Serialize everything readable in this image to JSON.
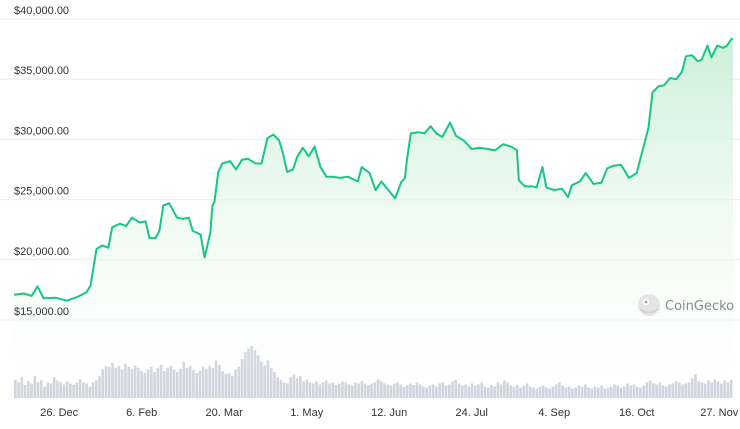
{
  "watermark": {
    "text": "CoinGecko",
    "icon": "coingecko-logo-icon"
  },
  "colors": {
    "line": "#16c784",
    "area_top": "#c9efd5",
    "area_bottom": "#ffffff",
    "grid": "#eeeeee",
    "volume": "#c5c9d6",
    "text": "#333333"
  },
  "chart_data": {
    "type": "area",
    "title": "",
    "xlabel": "",
    "ylabel": "",
    "ylim": [
      15000,
      40000
    ],
    "y_ticks": [
      {
        "value": 40000,
        "label": "$40,000.00"
      },
      {
        "value": 35000,
        "label": "$35,000.00"
      },
      {
        "value": 30000,
        "label": "$30,000.00"
      },
      {
        "value": 25000,
        "label": "$25,000.00"
      },
      {
        "value": 20000,
        "label": "$20,000.00"
      },
      {
        "value": 15000,
        "label": "$15,000.00"
      }
    ],
    "x_range": [
      "2022-12-03",
      "2023-12-04"
    ],
    "x_ticks": [
      {
        "date": "2022-12-26",
        "label": "26. Dec"
      },
      {
        "date": "2023-02-06",
        "label": "6. Feb"
      },
      {
        "date": "2023-03-20",
        "label": "20. Mar"
      },
      {
        "date": "2023-05-01",
        "label": "1. May"
      },
      {
        "date": "2023-06-12",
        "label": "12. Jun"
      },
      {
        "date": "2023-07-24",
        "label": "24. Jul"
      },
      {
        "date": "2023-09-04",
        "label": "4. Sep"
      },
      {
        "date": "2023-10-16",
        "label": "16. Oct"
      },
      {
        "date": "2023-11-27",
        "label": "27. Nov"
      }
    ],
    "grid": true,
    "legend": "none",
    "series": [
      {
        "points": [
          [
            "2022-12-03",
            17100
          ],
          [
            "2022-12-08",
            17200
          ],
          [
            "2022-12-12",
            17000
          ],
          [
            "2022-12-15",
            17800
          ],
          [
            "2022-12-18",
            16800
          ],
          [
            "2022-12-24",
            16850
          ],
          [
            "2022-12-30",
            16600
          ],
          [
            "2023-01-04",
            16900
          ],
          [
            "2023-01-09",
            17300
          ],
          [
            "2023-01-11",
            17900
          ],
          [
            "2023-01-14",
            20900
          ],
          [
            "2023-01-17",
            21200
          ],
          [
            "2023-01-20",
            21000
          ],
          [
            "2023-01-22",
            22700
          ],
          [
            "2023-01-26",
            23000
          ],
          [
            "2023-01-29",
            22800
          ],
          [
            "2023-02-01",
            23500
          ],
          [
            "2023-02-05",
            23100
          ],
          [
            "2023-02-08",
            23200
          ],
          [
            "2023-02-10",
            21800
          ],
          [
            "2023-02-13",
            21800
          ],
          [
            "2023-02-15",
            22400
          ],
          [
            "2023-02-17",
            24500
          ],
          [
            "2023-02-20",
            24700
          ],
          [
            "2023-02-24",
            23500
          ],
          [
            "2023-02-27",
            23400
          ],
          [
            "2023-03-02",
            23500
          ],
          [
            "2023-03-04",
            22400
          ],
          [
            "2023-03-08",
            22100
          ],
          [
            "2023-03-10",
            20200
          ],
          [
            "2023-03-13",
            22300
          ],
          [
            "2023-03-14",
            24500
          ],
          [
            "2023-03-15",
            24800
          ],
          [
            "2023-03-17",
            27300
          ],
          [
            "2023-03-19",
            28000
          ],
          [
            "2023-03-23",
            28200
          ],
          [
            "2023-03-26",
            27500
          ],
          [
            "2023-03-29",
            28300
          ],
          [
            "2023-04-01",
            28400
          ],
          [
            "2023-04-05",
            28000
          ],
          [
            "2023-04-08",
            28000
          ],
          [
            "2023-04-11",
            30100
          ],
          [
            "2023-04-14",
            30400
          ],
          [
            "2023-04-17",
            29900
          ],
          [
            "2023-04-19",
            28800
          ],
          [
            "2023-04-21",
            27300
          ],
          [
            "2023-04-24",
            27500
          ],
          [
            "2023-04-26",
            28500
          ],
          [
            "2023-04-29",
            29300
          ],
          [
            "2023-05-02",
            28600
          ],
          [
            "2023-05-05",
            29400
          ],
          [
            "2023-05-08",
            27700
          ],
          [
            "2023-05-11",
            26900
          ],
          [
            "2023-05-14",
            26900
          ],
          [
            "2023-05-18",
            26800
          ],
          [
            "2023-05-22",
            26900
          ],
          [
            "2023-05-27",
            26500
          ],
          [
            "2023-05-29",
            27700
          ],
          [
            "2023-06-02",
            27200
          ],
          [
            "2023-06-05",
            25800
          ],
          [
            "2023-06-08",
            26500
          ],
          [
            "2023-06-11",
            25900
          ],
          [
            "2023-06-15",
            25100
          ],
          [
            "2023-06-18",
            26400
          ],
          [
            "2023-06-20",
            26800
          ],
          [
            "2023-06-21",
            28300
          ],
          [
            "2023-06-23",
            30500
          ],
          [
            "2023-06-27",
            30600
          ],
          [
            "2023-06-30",
            30500
          ],
          [
            "2023-07-03",
            31100
          ],
          [
            "2023-07-06",
            30500
          ],
          [
            "2023-07-09",
            30200
          ],
          [
            "2023-07-13",
            31400
          ],
          [
            "2023-07-16",
            30300
          ],
          [
            "2023-07-20",
            29900
          ],
          [
            "2023-07-24",
            29200
          ],
          [
            "2023-07-28",
            29300
          ],
          [
            "2023-08-01",
            29200
          ],
          [
            "2023-08-05",
            29100
          ],
          [
            "2023-08-09",
            29600
          ],
          [
            "2023-08-13",
            29400
          ],
          [
            "2023-08-16",
            29100
          ],
          [
            "2023-08-17",
            26600
          ],
          [
            "2023-08-20",
            26100
          ],
          [
            "2023-08-24",
            26100
          ],
          [
            "2023-08-26",
            26000
          ],
          [
            "2023-08-29",
            27700
          ],
          [
            "2023-08-31",
            26000
          ],
          [
            "2023-09-04",
            25800
          ],
          [
            "2023-09-08",
            25900
          ],
          [
            "2023-09-11",
            25200
          ],
          [
            "2023-09-13",
            26200
          ],
          [
            "2023-09-17",
            26500
          ],
          [
            "2023-09-20",
            27200
          ],
          [
            "2023-09-24",
            26300
          ],
          [
            "2023-09-28",
            26400
          ],
          [
            "2023-10-01",
            27600
          ],
          [
            "2023-10-04",
            27800
          ],
          [
            "2023-10-08",
            27900
          ],
          [
            "2023-10-12",
            26800
          ],
          [
            "2023-10-16",
            27200
          ],
          [
            "2023-10-18",
            28500
          ],
          [
            "2023-10-20",
            29700
          ],
          [
            "2023-10-22",
            31000
          ],
          [
            "2023-10-24",
            33900
          ],
          [
            "2023-10-27",
            34400
          ],
          [
            "2023-10-30",
            34500
          ],
          [
            "2023-11-02",
            35100
          ],
          [
            "2023-11-05",
            35000
          ],
          [
            "2023-11-08",
            35600
          ],
          [
            "2023-11-10",
            36900
          ],
          [
            "2023-11-13",
            37000
          ],
          [
            "2023-11-16",
            36500
          ],
          [
            "2023-11-18",
            36600
          ],
          [
            "2023-11-21",
            37800
          ],
          [
            "2023-11-23",
            36800
          ],
          [
            "2023-11-26",
            37800
          ],
          [
            "2023-11-29",
            37600
          ],
          [
            "2023-12-01",
            37800
          ],
          [
            "2023-12-03",
            38300
          ],
          [
            "2023-12-04",
            38400
          ]
        ]
      }
    ],
    "volume_bars": {
      "ylim": [
        0,
        1
      ],
      "values": [
        0.35,
        0.3,
        0.4,
        0.25,
        0.33,
        0.28,
        0.42,
        0.3,
        0.35,
        0.22,
        0.3,
        0.28,
        0.4,
        0.34,
        0.3,
        0.26,
        0.32,
        0.28,
        0.25,
        0.3,
        0.36,
        0.3,
        0.28,
        0.22,
        0.3,
        0.34,
        0.42,
        0.55,
        0.62,
        0.6,
        0.68,
        0.58,
        0.62,
        0.55,
        0.66,
        0.6,
        0.56,
        0.62,
        0.58,
        0.52,
        0.48,
        0.55,
        0.6,
        0.5,
        0.58,
        0.64,
        0.52,
        0.58,
        0.62,
        0.55,
        0.5,
        0.56,
        0.7,
        0.58,
        0.62,
        0.54,
        0.48,
        0.52,
        0.6,
        0.56,
        0.62,
        0.58,
        0.72,
        0.64,
        0.52,
        0.46,
        0.48,
        0.42,
        0.55,
        0.6,
        0.75,
        0.88,
        0.95,
        1.0,
        0.92,
        0.82,
        0.7,
        0.62,
        0.72,
        0.58,
        0.5,
        0.4,
        0.35,
        0.3,
        0.28,
        0.4,
        0.45,
        0.38,
        0.42,
        0.32,
        0.36,
        0.3,
        0.28,
        0.32,
        0.26,
        0.3,
        0.34,
        0.28,
        0.3,
        0.25,
        0.28,
        0.32,
        0.3,
        0.26,
        0.24,
        0.3,
        0.28,
        0.33,
        0.28,
        0.25,
        0.28,
        0.3,
        0.36,
        0.32,
        0.28,
        0.26,
        0.24,
        0.28,
        0.3,
        0.26,
        0.22,
        0.24,
        0.28,
        0.25,
        0.3,
        0.26,
        0.22,
        0.2,
        0.24,
        0.26,
        0.22,
        0.28,
        0.3,
        0.24,
        0.26,
        0.32,
        0.35,
        0.28,
        0.24,
        0.26,
        0.22,
        0.28,
        0.24,
        0.26,
        0.3,
        0.22,
        0.2,
        0.25,
        0.22,
        0.3,
        0.26,
        0.34,
        0.3,
        0.24,
        0.22,
        0.26,
        0.2,
        0.24,
        0.28,
        0.22,
        0.2,
        0.18,
        0.22,
        0.24,
        0.2,
        0.18,
        0.22,
        0.26,
        0.3,
        0.24,
        0.2,
        0.22,
        0.18,
        0.2,
        0.24,
        0.22,
        0.26,
        0.2,
        0.18,
        0.22,
        0.2,
        0.24,
        0.18,
        0.2,
        0.22,
        0.26,
        0.24,
        0.2,
        0.22,
        0.28,
        0.24,
        0.26,
        0.22,
        0.2,
        0.24,
        0.3,
        0.34,
        0.28,
        0.26,
        0.3,
        0.24,
        0.22,
        0.26,
        0.28,
        0.32,
        0.3,
        0.26,
        0.28,
        0.3,
        0.38,
        0.45,
        0.32,
        0.3,
        0.28,
        0.34,
        0.3,
        0.36,
        0.32,
        0.28,
        0.34,
        0.3,
        0.35
      ]
    }
  }
}
